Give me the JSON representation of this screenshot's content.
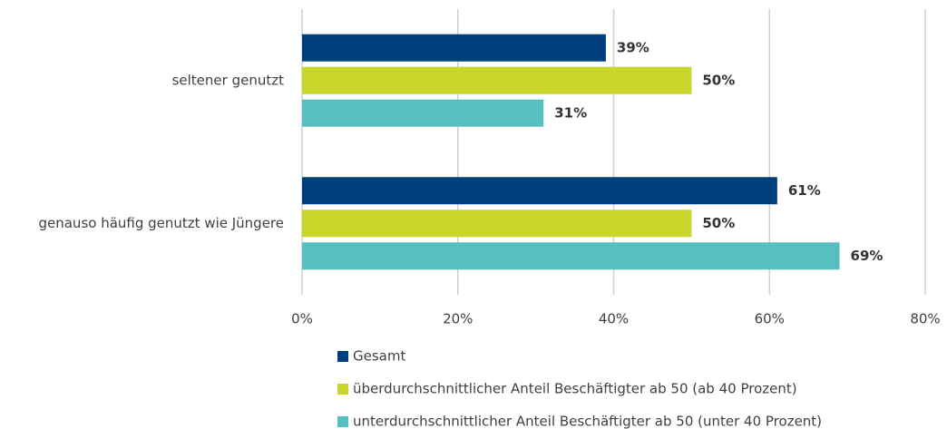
{
  "chart_data": {
    "type": "hbar",
    "categories": [
      "seltener genutzt",
      "genauso häufig genutzt wie Jüngere"
    ],
    "series": [
      {
        "name": "Gesamt",
        "color": "#003f7d",
        "values": [
          39,
          61
        ],
        "value_labels": [
          "39%",
          "61%"
        ]
      },
      {
        "name": "überdurchschnittlicher Anteil Beschäftigter ab 50 (ab 40 Prozent)",
        "color": "#c8d62b",
        "values": [
          50,
          50
        ],
        "value_labels": [
          "50%",
          "50%"
        ]
      },
      {
        "name": "unterdurchschnittlicher Anteil Beschäftigter ab 50 (unter 40 Prozent)",
        "color": "#57bfc1",
        "values": [
          31,
          69
        ],
        "value_labels": [
          "31%",
          "69%"
        ]
      }
    ],
    "xlim": [
      0,
      80
    ],
    "xticks": [
      {
        "value": 0,
        "label": "0%"
      },
      {
        "value": 20,
        "label": "20%"
      },
      {
        "value": 40,
        "label": "40%"
      },
      {
        "value": 60,
        "label": "60%"
      },
      {
        "value": 80,
        "label": "80%"
      }
    ],
    "grid": true,
    "legend": "bottom"
  }
}
